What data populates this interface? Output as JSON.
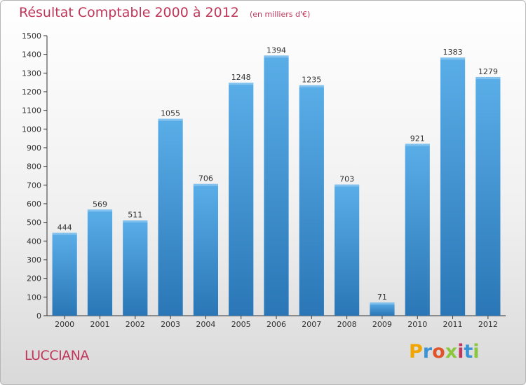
{
  "header": {
    "title": "Résultat Comptable 2000 à 2012",
    "subtitle": "(en milliers d'€)"
  },
  "footer": {
    "commune": "LUCCIANA",
    "logo_text": "Proxiti",
    "logo_letters": [
      {
        "ch": "P",
        "color": "#f0a500"
      },
      {
        "ch": "r",
        "color": "#3a93d6"
      },
      {
        "ch": "o",
        "color": "#e0542c"
      },
      {
        "ch": "x",
        "color": "#8cc63f"
      },
      {
        "ch": "i",
        "color": "#c0365a"
      },
      {
        "ch": "t",
        "color": "#3a93d6"
      },
      {
        "ch": "i",
        "color": "#8cc63f"
      }
    ]
  },
  "chart_data": {
    "type": "bar",
    "title": "Résultat Comptable 2000 à 2012",
    "subtitle": "(en milliers d'€)",
    "categories": [
      "2000",
      "2001",
      "2002",
      "2003",
      "2004",
      "2005",
      "2006",
      "2007",
      "2008",
      "2009",
      "2010",
      "2011",
      "2012"
    ],
    "values": [
      444,
      569,
      511,
      1055,
      706,
      1248,
      1394,
      1235,
      703,
      71,
      921,
      1383,
      1279
    ],
    "ylim": [
      0,
      1500
    ],
    "yticks": [
      0,
      100,
      200,
      300,
      400,
      500,
      600,
      700,
      800,
      900,
      1000,
      1100,
      1200,
      1300,
      1400,
      1500
    ],
    "grid": false,
    "bar_color_top": "#5aaee8",
    "bar_color_bottom": "#2a76b6",
    "label_color": "#333333",
    "axis_color": "#333333"
  }
}
